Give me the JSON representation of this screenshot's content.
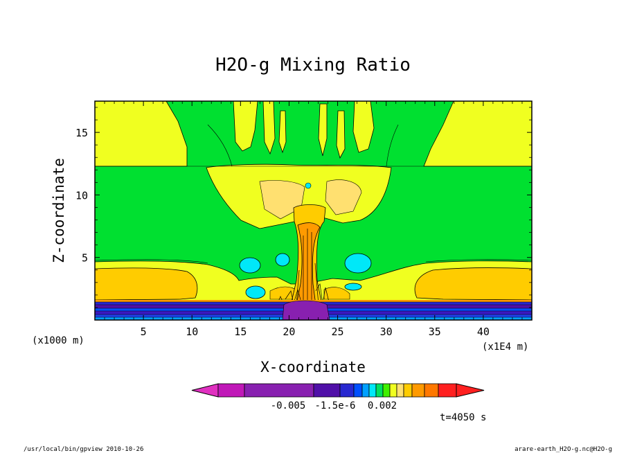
{
  "chart_data": {
    "type": "heatmap",
    "title": "H2O-g Mixing Ratio",
    "xlabel": "X-coordinate",
    "ylabel": "Z-coordinate",
    "xunit": "(x1000 m)",
    "xunit_right": "(x1E4 m)",
    "xlim": [
      0,
      45
    ],
    "ylim": [
      0,
      17.5
    ],
    "xticks": [
      "5",
      "10",
      "15",
      "20",
      "25",
      "30",
      "35",
      "40"
    ],
    "yticks": [
      "5",
      "10",
      "15"
    ],
    "colorbar": {
      "colors": [
        "#e030c0",
        "#c018b8",
        "#8820b0",
        "#5010a8",
        "#2828d0",
        "#0050ff",
        "#00a0ff",
        "#00e8f8",
        "#00e060",
        "#40f000",
        "#f0ff20",
        "#ffe070",
        "#ffcc00",
        "#ff9a00",
        "#ff7800",
        "#ff2020"
      ],
      "tick_labels": [
        "-0.005",
        "-1.5e-6",
        "0.002"
      ]
    },
    "time_label": "t=4050 s",
    "footer_left": "/usr/local/bin/gpview  2010-10-26",
    "footer_right": "arare-earth_H2O-g.nc@H2O-g"
  }
}
